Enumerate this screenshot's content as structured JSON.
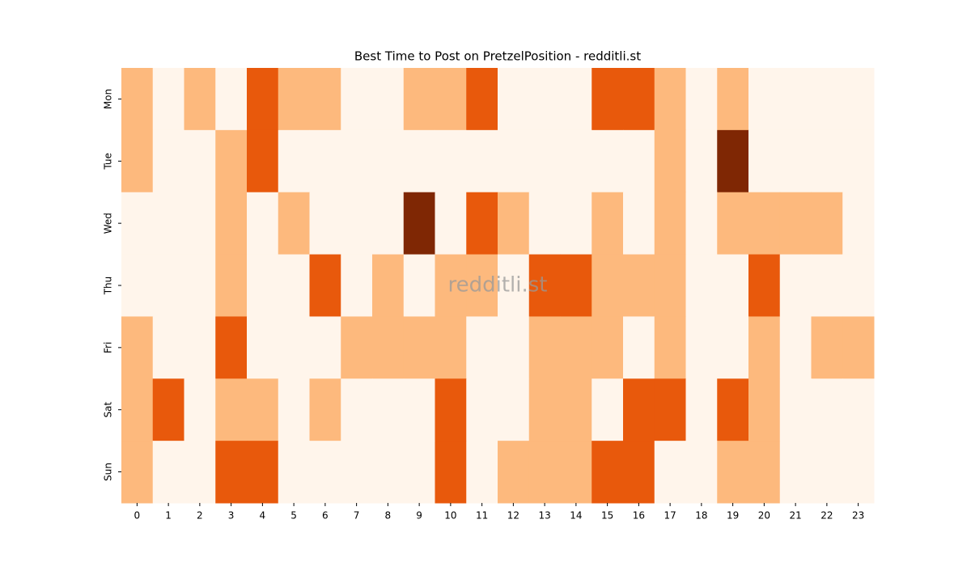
{
  "chart_data": {
    "type": "heatmap",
    "title": "Best Time to Post on PretzelPosition - redditli.st",
    "watermark": "redditli.st",
    "x": [
      0,
      1,
      2,
      3,
      4,
      5,
      6,
      7,
      8,
      9,
      10,
      11,
      12,
      13,
      14,
      15,
      16,
      17,
      18,
      19,
      20,
      21,
      22,
      23
    ],
    "y": [
      "Mon",
      "Tue",
      "Wed",
      "Thu",
      "Fri",
      "Sat",
      "Sun"
    ],
    "values": [
      [
        1,
        0,
        1,
        0,
        2,
        1,
        1,
        0,
        0,
        1,
        1,
        2,
        0,
        0,
        0,
        2,
        2,
        1,
        0,
        1,
        0,
        0,
        0,
        0
      ],
      [
        1,
        0,
        0,
        1,
        2,
        0,
        0,
        0,
        0,
        0,
        0,
        0,
        0,
        0,
        0,
        0,
        0,
        1,
        0,
        3,
        0,
        0,
        0,
        0
      ],
      [
        0,
        0,
        0,
        1,
        0,
        1,
        0,
        0,
        0,
        3,
        0,
        2,
        1,
        0,
        0,
        1,
        0,
        1,
        0,
        1,
        1,
        1,
        1,
        0
      ],
      [
        0,
        0,
        0,
        1,
        0,
        0,
        2,
        0,
        1,
        0,
        1,
        1,
        0,
        2,
        2,
        1,
        1,
        1,
        0,
        0,
        2,
        0,
        0,
        0
      ],
      [
        1,
        0,
        0,
        2,
        0,
        0,
        0,
        1,
        1,
        1,
        1,
        0,
        0,
        1,
        1,
        1,
        0,
        1,
        0,
        0,
        1,
        0,
        1,
        1
      ],
      [
        1,
        2,
        0,
        1,
        1,
        0,
        1,
        0,
        0,
        0,
        2,
        0,
        0,
        1,
        1,
        0,
        2,
        2,
        0,
        2,
        1,
        0,
        0,
        0
      ],
      [
        1,
        0,
        0,
        2,
        2,
        0,
        0,
        0,
        0,
        0,
        2,
        0,
        1,
        1,
        1,
        2,
        2,
        0,
        0,
        1,
        1,
        0,
        0,
        0
      ]
    ],
    "zlim": [
      0,
      3
    ],
    "colorscale": [
      "#fff5eb",
      "#fdb97d",
      "#e8590c",
      "#7f2704"
    ]
  }
}
